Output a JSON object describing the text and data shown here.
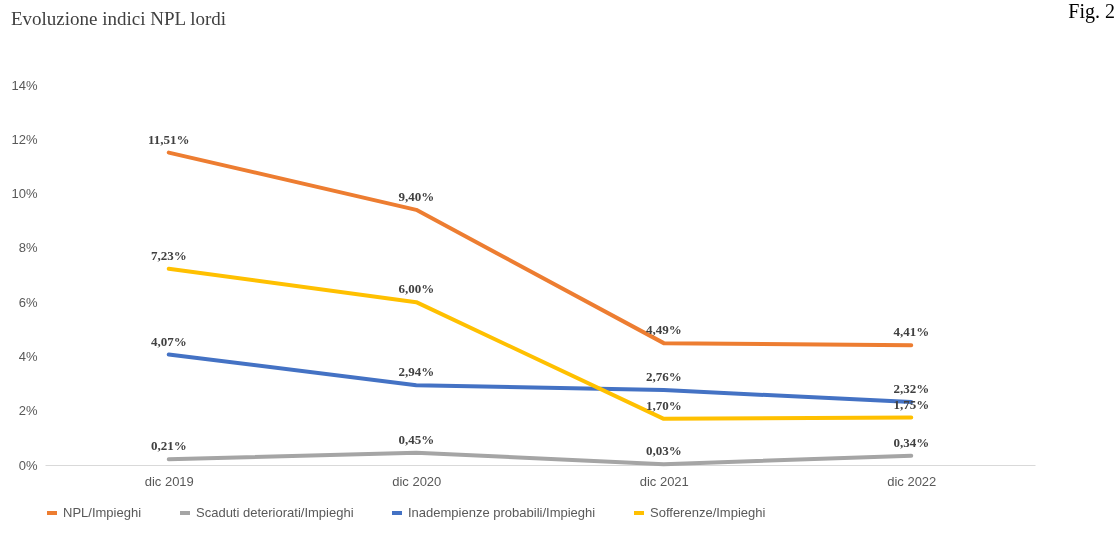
{
  "chart_data": {
    "type": "line",
    "title": "Evoluzione indici NPL lordi",
    "annotations": [
      "Fig. 2"
    ],
    "categories": [
      "dic 2019",
      "dic 2020",
      "dic 2021",
      "dic 2022"
    ],
    "series": [
      {
        "name": "NPL/Impieghi",
        "color": "#ed7d31",
        "values": [
          11.51,
          9.4,
          4.49,
          4.41
        ],
        "value_labels": [
          "11,51%",
          "9,40%",
          "4,49%",
          "4,41%"
        ]
      },
      {
        "name": "Scaduti deteriorati/Impieghi",
        "color": "#a5a5a5",
        "values": [
          0.21,
          0.45,
          0.03,
          0.34
        ],
        "value_labels": [
          "0,21%",
          "0,45%",
          "0,03%",
          "0,34%"
        ]
      },
      {
        "name": "Inadempienze probabili/Impieghi",
        "color": "#4472c4",
        "values": [
          4.07,
          2.94,
          2.76,
          2.32
        ],
        "value_labels": [
          "4,07%",
          "2,94%",
          "2,76%",
          "2,32%"
        ]
      },
      {
        "name": "Sofferenze/Impieghi",
        "color": "#ffc000",
        "values": [
          7.23,
          6.0,
          1.7,
          1.75
        ],
        "value_labels": [
          "7,23%",
          "6,00%",
          "1,70%",
          "1,75%"
        ]
      }
    ],
    "ylim": [
      0,
      14
    ],
    "yticks": [
      {
        "value": 0,
        "label": "0%"
      },
      {
        "value": 2,
        "label": "2%"
      },
      {
        "value": 4,
        "label": "4%"
      },
      {
        "value": 6,
        "label": "6%"
      },
      {
        "value": 8,
        "label": "8%"
      },
      {
        "value": 10,
        "label": "10%"
      },
      {
        "value": 12,
        "label": "12%"
      },
      {
        "value": 14,
        "label": "14%"
      }
    ],
    "grid": false,
    "legend": "bottom",
    "marker": "none",
    "line_style": "solid"
  }
}
